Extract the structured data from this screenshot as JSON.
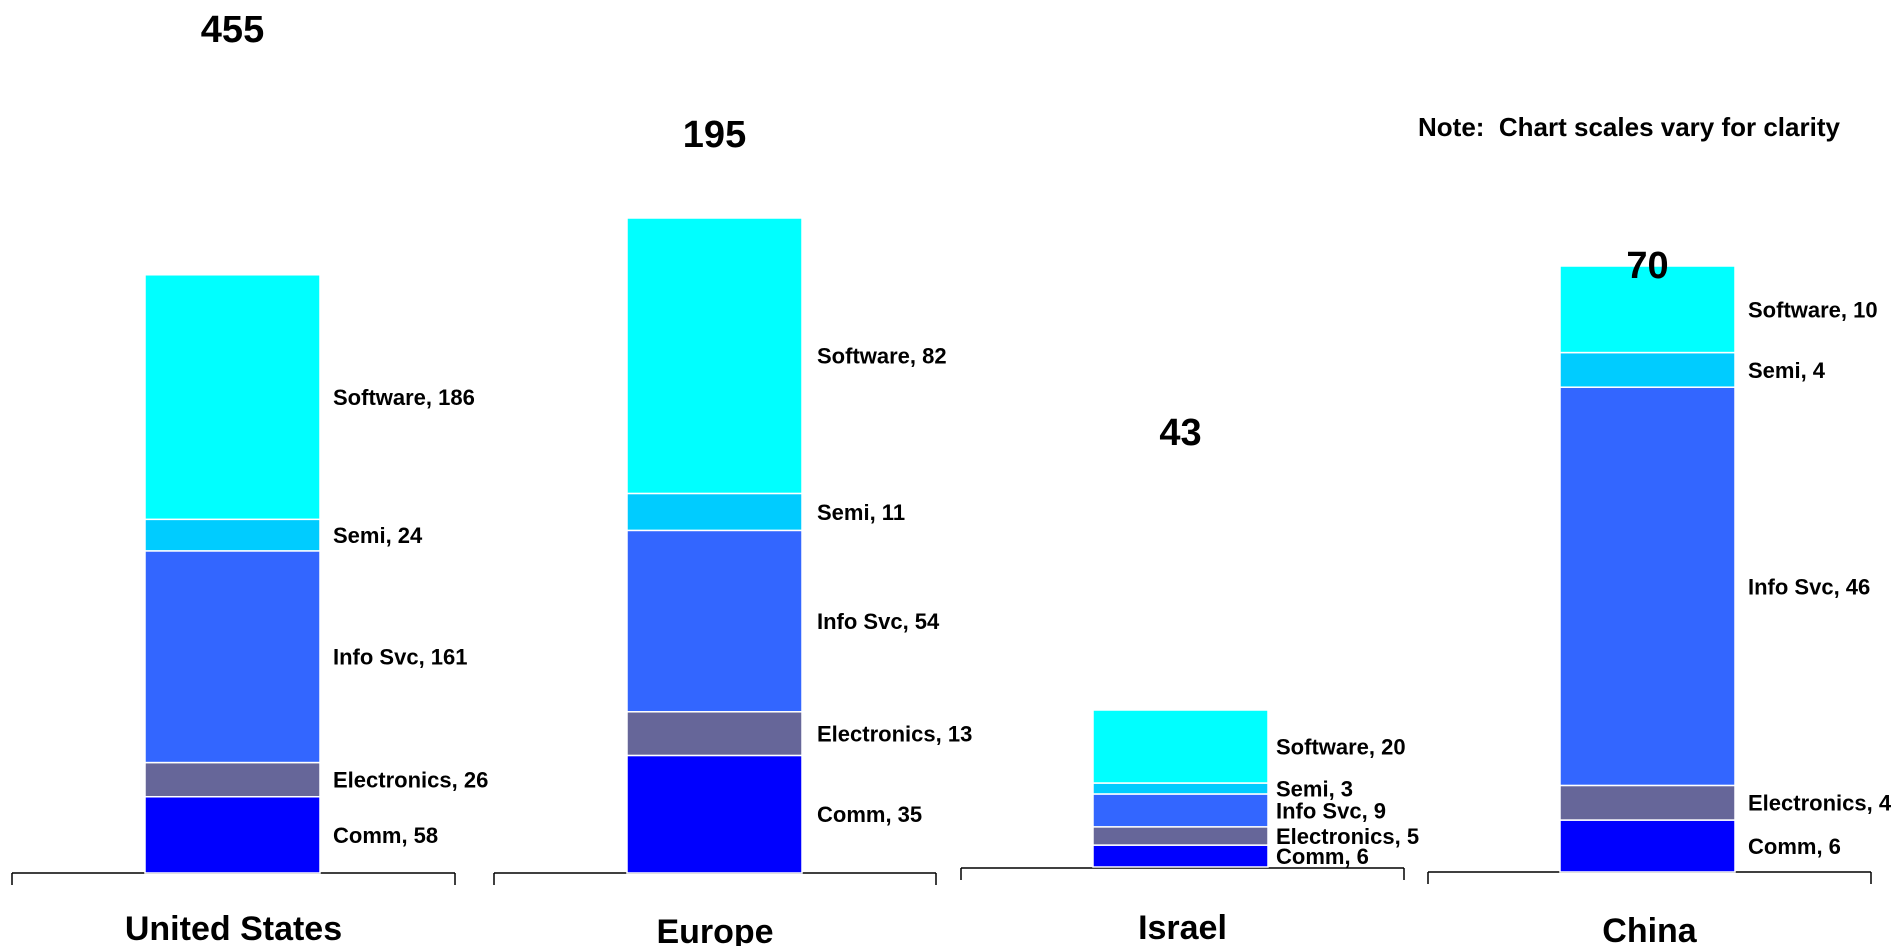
{
  "note": "Note:  Chart scales vary for clarity",
  "chart_data": [
    {
      "type": "bar",
      "category": "United States",
      "total": "455",
      "segments": [
        {
          "name": "Comm",
          "value": 58,
          "label": "Comm, 58",
          "color": "#0000FF"
        },
        {
          "name": "Electronics",
          "value": 26,
          "label": "Electronics, 26",
          "color": "#666699"
        },
        {
          "name": "Info Svc",
          "value": 161,
          "label": "Info Svc, 161",
          "color": "#3366FF"
        },
        {
          "name": "Semi",
          "value": 24,
          "label": "Semi, 24",
          "color": "#00CCFF"
        },
        {
          "name": "Software",
          "value": 186,
          "label": "Software, 186",
          "color": "#00FFFF"
        }
      ]
    },
    {
      "type": "bar",
      "category": "Europe",
      "total": "195",
      "segments": [
        {
          "name": "Comm",
          "value": 35,
          "label": "Comm, 35",
          "color": "#0000FF"
        },
        {
          "name": "Electronics",
          "value": 13,
          "label": "Electronics, 13",
          "color": "#666699"
        },
        {
          "name": "Info Svc",
          "value": 54,
          "label": "Info Svc, 54",
          "color": "#3366FF"
        },
        {
          "name": "Semi",
          "value": 11,
          "label": "Semi, 11",
          "color": "#00CCFF"
        },
        {
          "name": "Software",
          "value": 82,
          "label": "Software, 82",
          "color": "#00FFFF"
        }
      ]
    },
    {
      "type": "bar",
      "category": "Israel",
      "total": "43",
      "segments": [
        {
          "name": "Comm",
          "value": 6,
          "label": "Comm, 6",
          "color": "#0000FF"
        },
        {
          "name": "Electronics",
          "value": 5,
          "label": "Electronics, 5",
          "color": "#666699"
        },
        {
          "name": "Info Svc",
          "value": 9,
          "label": "Info Svc, 9",
          "color": "#3366FF"
        },
        {
          "name": "Semi",
          "value": 3,
          "label": "Semi, 3",
          "color": "#00CCFF"
        },
        {
          "name": "Software",
          "value": 20,
          "label": "Software, 20",
          "color": "#00FFFF"
        }
      ]
    },
    {
      "type": "bar",
      "category": "China",
      "total": "70",
      "segments": [
        {
          "name": "Comm",
          "value": 6,
          "label": "Comm, 6",
          "color": "#0000FF"
        },
        {
          "name": "Electronics",
          "value": 4,
          "label": "Electronics, 4",
          "color": "#666699"
        },
        {
          "name": "Info Svc",
          "value": 46,
          "label": "Info Svc, 46",
          "color": "#3366FF"
        },
        {
          "name": "Semi",
          "value": 4,
          "label": "Semi, 4",
          "color": "#00CCFF"
        },
        {
          "name": "Software",
          "value": 10,
          "label": "Software, 10",
          "color": "#00FFFF"
        }
      ]
    }
  ]
}
